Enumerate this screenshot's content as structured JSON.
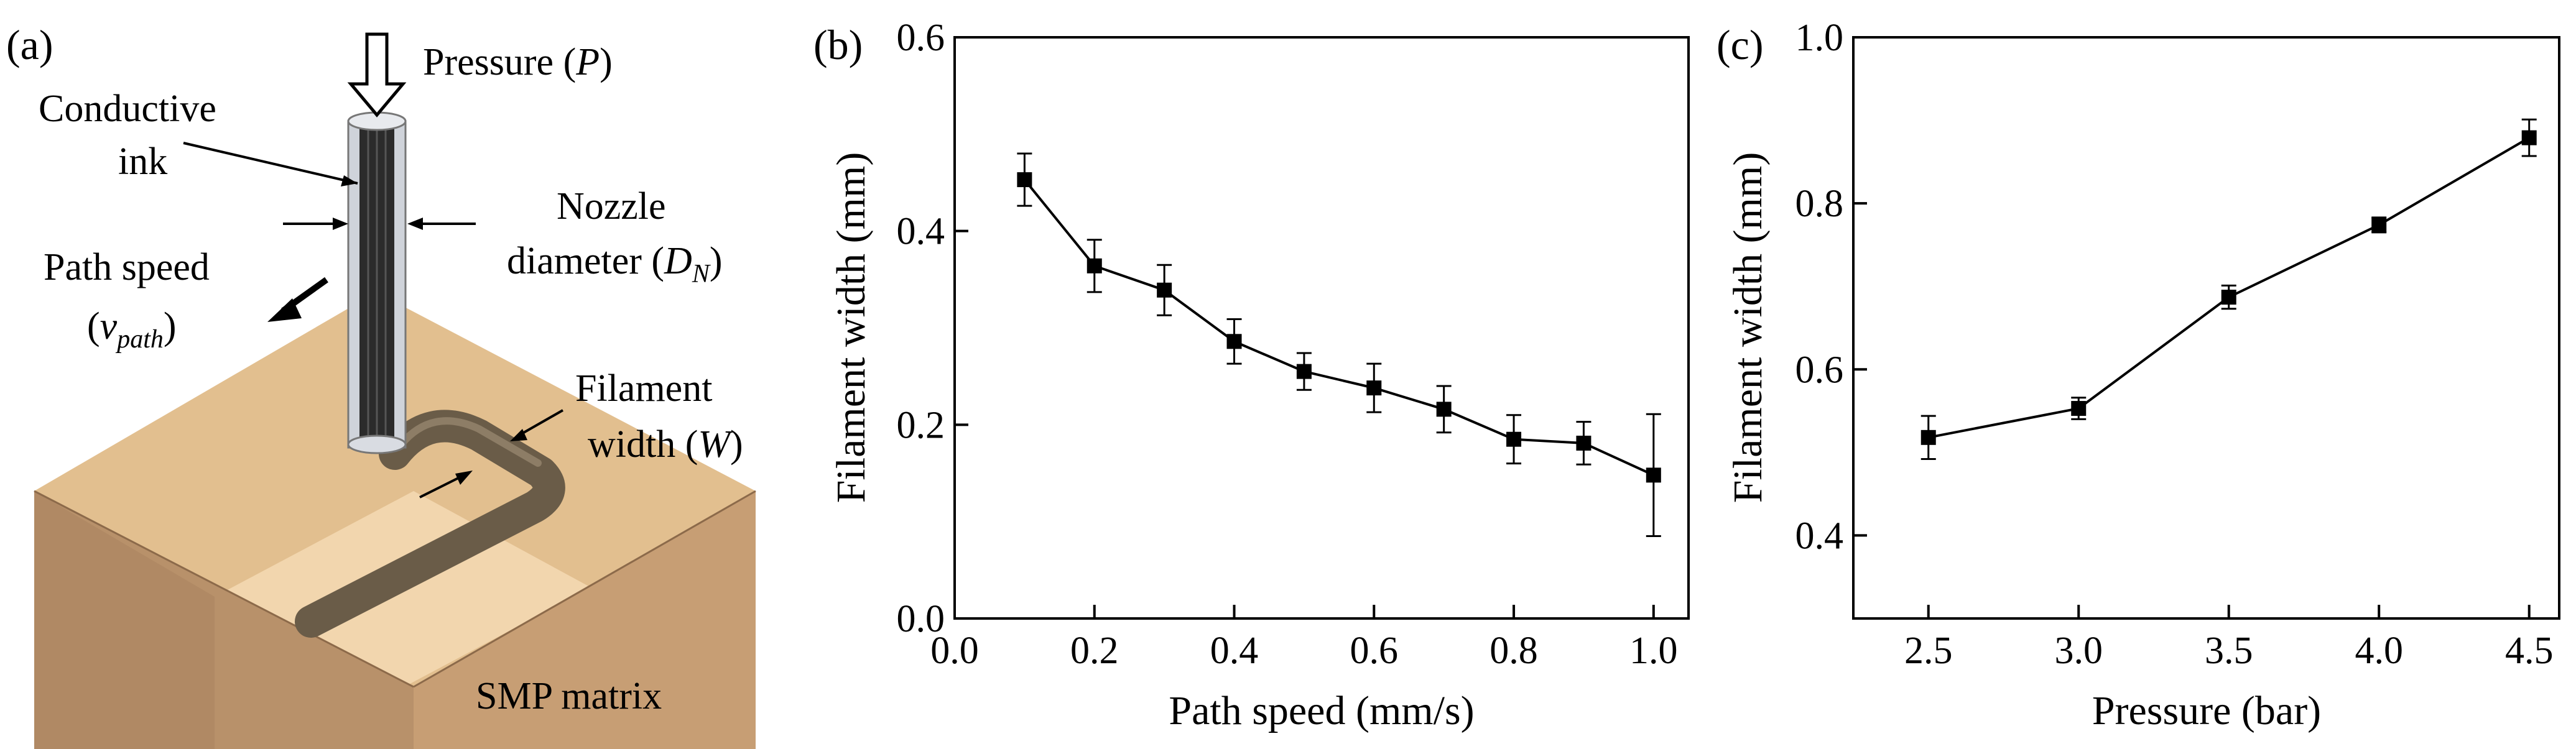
{
  "figure": {
    "panels": [
      {
        "label": "(a)",
        "type": "schematic",
        "labels": {
          "pressure": "Pressure (",
          "pressure_sym": "P",
          "pressure_close": ")",
          "ink_line1": "Conductive",
          "ink_line2": "ink",
          "nozzle_line1": "Nozzle",
          "nozzle_line2": "diameter (",
          "nozzle_sym": "D",
          "nozzle_sub": "N",
          "nozzle_close": ")",
          "speed_line1": "Path speed",
          "speed_open": "(",
          "speed_sym": "v",
          "speed_sub": "path",
          "speed_close": ")",
          "filament_line1": "Filament",
          "filament_line2": "width (",
          "filament_sym": "W",
          "filament_close": ")",
          "matrix": "SMP matrix"
        },
        "colors": {
          "block_top": "#e2bf8f",
          "block_left": "#b8916a",
          "block_right": "#c79e74",
          "block_inner_light": "#f4d9b4",
          "filament": "#6a5c48",
          "nozzle_ink": "#2b2b2b",
          "nozzle_glass": "#cfd3da"
        }
      },
      {
        "label": "(b)",
        "type": "chart"
      },
      {
        "label": "(c)",
        "type": "chart"
      }
    ]
  },
  "chart_data": [
    {
      "panel": "(b)",
      "type": "line",
      "xlabel": "Path speed (mm/s)",
      "ylabel": "Filament width (mm)",
      "xlim": [
        0.0,
        1.05
      ],
      "ylim": [
        0.0,
        0.6
      ],
      "xticks": [
        0.0,
        0.2,
        0.4,
        0.6,
        0.8,
        1.0
      ],
      "xtick_labels": [
        "0.0",
        "0.2",
        "0.4",
        "0.6",
        "0.8",
        "1.0"
      ],
      "yticks": [
        0.0,
        0.2,
        0.4,
        0.6
      ],
      "ytick_labels": [
        "0.0",
        "0.2",
        "0.4",
        "0.6"
      ],
      "marker": "square",
      "series": [
        {
          "name": "Filament width",
          "x": [
            0.1,
            0.2,
            0.3,
            0.4,
            0.5,
            0.6,
            0.7,
            0.8,
            0.9,
            1.0
          ],
          "y": [
            0.453,
            0.364,
            0.339,
            0.286,
            0.255,
            0.238,
            0.216,
            0.185,
            0.181,
            0.148
          ],
          "err": [
            0.027,
            0.027,
            0.026,
            0.023,
            0.019,
            0.025,
            0.024,
            0.025,
            0.022,
            0.063
          ]
        }
      ]
    },
    {
      "panel": "(c)",
      "type": "line",
      "xlabel": "Pressure (bar)",
      "ylabel": "Filament width (mm)",
      "xlim": [
        2.25,
        4.6
      ],
      "ylim": [
        0.3,
        1.0
      ],
      "xticks": [
        2.5,
        3.0,
        3.5,
        4.0,
        4.5
      ],
      "xtick_labels": [
        "2.5",
        "3.0",
        "3.5",
        "4.0",
        "4.5"
      ],
      "yticks": [
        0.4,
        0.6,
        0.8,
        1.0
      ],
      "ytick_labels": [
        "0.4",
        "0.6",
        "0.8",
        "1.0"
      ],
      "marker": "square",
      "series": [
        {
          "name": "Filament width",
          "x": [
            2.5,
            3.0,
            3.5,
            4.0,
            4.5
          ],
          "y": [
            0.518,
            0.553,
            0.687,
            0.774,
            0.879
          ],
          "err": [
            0.026,
            0.013,
            0.014,
            0.009,
            0.022
          ]
        }
      ]
    }
  ]
}
